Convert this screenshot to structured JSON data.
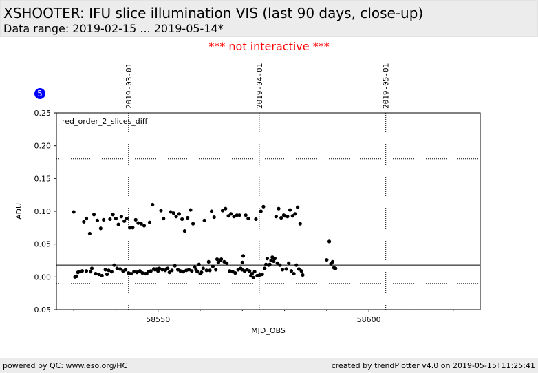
{
  "header": {
    "title": "XSHOOTER: IFU slice illumination VIS (last 90 days, close-up)",
    "subtitle": "Data range: 2019-02-15 ... 2019-05-14*"
  },
  "notice": "*** not interactive ***",
  "badge": "5",
  "footer": {
    "left": "powered by QC: www.eso.org/HC",
    "right": "created by trendPlotter v4.0 on 2019-05-15T11:25:41"
  },
  "chart_data": {
    "type": "scatter",
    "annotation": "red_order_2_slices_diff",
    "xlabel": "MJD_OBS",
    "ylabel": "ADU",
    "xlim": [
      58525.9,
      58626.4
    ],
    "ylim": [
      -0.05,
      0.25
    ],
    "x_ticks": [
      {
        "value": 58550,
        "label": "58550"
      },
      {
        "value": 58600,
        "label": "58600"
      }
    ],
    "x_minor_ticks": [
      58530,
      58540,
      58560,
      58570,
      58580,
      58590,
      58610,
      58620
    ],
    "y_ticks": [
      {
        "value": -0.05,
        "label": "−0.05"
      },
      {
        "value": 0.0,
        "label": "0.00"
      },
      {
        "value": 0.05,
        "label": "0.05"
      },
      {
        "value": 0.1,
        "label": "0.10"
      },
      {
        "value": 0.15,
        "label": "0.15"
      },
      {
        "value": 0.2,
        "label": "0.20"
      },
      {
        "value": 0.25,
        "label": "0.25"
      }
    ],
    "date_markers": [
      {
        "x": 58543.0,
        "label": "2019-03-01"
      },
      {
        "x": 58574.0,
        "label": "2019-04-01"
      },
      {
        "x": 58604.0,
        "label": "2019-05-01"
      }
    ],
    "reference_lines": [
      {
        "y": 0.018,
        "style": "solid"
      },
      {
        "y": 0.18,
        "style": "dotted"
      },
      {
        "y": -0.01,
        "style": "dotted"
      }
    ],
    "point_color": "#000000",
    "points": [
      [
        58530.0,
        0.099
      ],
      [
        58530.3,
        0.0
      ],
      [
        58530.7,
        0.001
      ],
      [
        58531.0,
        0.007
      ],
      [
        58531.5,
        0.008
      ],
      [
        58532.0,
        0.009
      ],
      [
        58532.4,
        0.084
      ],
      [
        58533.0,
        0.089
      ],
      [
        58533.0,
        0.009
      ],
      [
        58533.8,
        0.066
      ],
      [
        58534.0,
        0.008
      ],
      [
        58534.3,
        0.013
      ],
      [
        58534.8,
        0.095
      ],
      [
        58535.2,
        0.005
      ],
      [
        58535.6,
        0.086
      ],
      [
        58536.0,
        0.004
      ],
      [
        58536.4,
        0.074
      ],
      [
        58536.7,
        0.002
      ],
      [
        58537.1,
        0.087
      ],
      [
        58537.5,
        0.011
      ],
      [
        58537.9,
        0.004
      ],
      [
        58538.3,
        0.01
      ],
      [
        58538.6,
        0.088
      ],
      [
        58539.0,
        0.008
      ],
      [
        58539.3,
        0.095
      ],
      [
        58539.6,
        0.018
      ],
      [
        58540.0,
        0.089
      ],
      [
        58540.3,
        0.013
      ],
      [
        58540.6,
        0.08
      ],
      [
        58541.0,
        0.012
      ],
      [
        58541.3,
        0.092
      ],
      [
        58541.7,
        0.009
      ],
      [
        58542.0,
        0.085
      ],
      [
        58542.3,
        0.011
      ],
      [
        58542.6,
        0.089
      ],
      [
        58543.0,
        0.006
      ],
      [
        58543.3,
        0.075
      ],
      [
        58543.6,
        0.005
      ],
      [
        58544.0,
        0.075
      ],
      [
        58544.3,
        0.008
      ],
      [
        58544.7,
        0.087
      ],
      [
        58545.0,
        0.007
      ],
      [
        58545.3,
        0.082
      ],
      [
        58545.7,
        0.009
      ],
      [
        58546.0,
        0.081
      ],
      [
        58546.3,
        0.006
      ],
      [
        58546.7,
        0.078
      ],
      [
        58547.0,
        0.005
      ],
      [
        58547.3,
        0.005
      ],
      [
        58547.7,
        0.008
      ],
      [
        58548.0,
        0.083
      ],
      [
        58548.3,
        0.009
      ],
      [
        58548.7,
        0.11
      ],
      [
        58549.0,
        0.012
      ],
      [
        58549.3,
        0.011
      ],
      [
        58549.7,
        0.012
      ],
      [
        58550.0,
        0.009
      ],
      [
        58550.3,
        0.013
      ],
      [
        58550.7,
        0.101
      ],
      [
        58551.0,
        0.011
      ],
      [
        58551.3,
        0.089
      ],
      [
        58551.7,
        0.01
      ],
      [
        58552.0,
        0.012
      ],
      [
        58552.3,
        0.013
      ],
      [
        58552.7,
        0.007
      ],
      [
        58553.0,
        0.099
      ],
      [
        58553.3,
        0.01
      ],
      [
        58553.7,
        0.097
      ],
      [
        58554.0,
        0.017
      ],
      [
        58554.3,
        0.092
      ],
      [
        58554.7,
        0.011
      ],
      [
        58555.0,
        0.096
      ],
      [
        58555.3,
        0.009
      ],
      [
        58555.7,
        0.088
      ],
      [
        58556.0,
        0.008
      ],
      [
        58556.3,
        0.07
      ],
      [
        58556.7,
        0.01
      ],
      [
        58557.0,
        0.09
      ],
      [
        58557.3,
        0.011
      ],
      [
        58557.7,
        0.102
      ],
      [
        58558.0,
        0.009
      ],
      [
        58558.3,
        0.081
      ],
      [
        58558.7,
        0.015
      ],
      [
        58559.0,
        0.011
      ],
      [
        58559.3,
        0.008
      ],
      [
        58559.7,
        0.019
      ],
      [
        58560.0,
        0.005
      ],
      [
        58560.3,
        0.007
      ],
      [
        58560.7,
        0.013
      ],
      [
        58561.0,
        0.086
      ],
      [
        58561.5,
        0.01
      ],
      [
        58562.0,
        0.023
      ],
      [
        58562.3,
        0.01
      ],
      [
        58562.7,
        0.1
      ],
      [
        58563.0,
        0.016
      ],
      [
        58563.3,
        0.091
      ],
      [
        58563.7,
        0.011
      ],
      [
        58564.0,
        0.027
      ],
      [
        58564.3,
        0.022
      ],
      [
        58564.7,
        0.025
      ],
      [
        58565.0,
        0.027
      ],
      [
        58565.3,
        0.101
      ],
      [
        58565.7,
        0.023
      ],
      [
        58566.0,
        0.104
      ],
      [
        58566.3,
        0.021
      ],
      [
        58566.7,
        0.093
      ],
      [
        58567.0,
        0.009
      ],
      [
        58567.3,
        0.096
      ],
      [
        58567.7,
        0.008
      ],
      [
        58568.0,
        0.092
      ],
      [
        58568.3,
        0.006
      ],
      [
        58568.7,
        0.094
      ],
      [
        58569.0,
        0.011
      ],
      [
        58569.3,
        0.094
      ],
      [
        58569.6,
        0.013
      ],
      [
        58569.9,
        0.011
      ],
      [
        58570.0,
        0.022
      ],
      [
        58570.2,
        0.032
      ],
      [
        58570.5,
        0.009
      ],
      [
        58570.8,
        0.094
      ],
      [
        58571.1,
        0.011
      ],
      [
        58571.4,
        0.089
      ],
      [
        58571.7,
        0.009
      ],
      [
        58572.0,
        0.002
      ],
      [
        58572.3,
        0.005
      ],
      [
        58572.6,
        -0.001
      ],
      [
        58572.9,
        0.008
      ],
      [
        58573.2,
        0.088
      ],
      [
        58573.5,
        0.002
      ],
      [
        58573.8,
        0.002
      ],
      [
        58574.1,
        0.003
      ],
      [
        58574.4,
        0.1
      ],
      [
        58574.7,
        0.004
      ],
      [
        58575.0,
        0.107
      ],
      [
        58575.3,
        0.013
      ],
      [
        58575.6,
        0.019
      ],
      [
        58575.9,
        0.028
      ],
      [
        58576.2,
        0.018
      ],
      [
        58576.5,
        0.019
      ],
      [
        58576.8,
        0.025
      ],
      [
        58577.1,
        0.03
      ],
      [
        58577.4,
        0.024
      ],
      [
        58577.7,
        0.028
      ],
      [
        58578.0,
        0.092
      ],
      [
        58578.3,
        0.021
      ],
      [
        58578.6,
        0.104
      ],
      [
        58578.9,
        0.018
      ],
      [
        58579.2,
        0.09
      ],
      [
        58579.5,
        0.011
      ],
      [
        58579.8,
        0.094
      ],
      [
        58580.1,
        0.093
      ],
      [
        58580.4,
        0.012
      ],
      [
        58580.7,
        0.092
      ],
      [
        58581.0,
        0.021
      ],
      [
        58581.3,
        0.102
      ],
      [
        58581.6,
        0.009
      ],
      [
        58581.9,
        0.093
      ],
      [
        58582.2,
        0.005
      ],
      [
        58582.5,
        0.096
      ],
      [
        58582.8,
        0.018
      ],
      [
        58583.1,
        0.106
      ],
      [
        58583.4,
        0.012
      ],
      [
        58583.7,
        0.081
      ],
      [
        58584.0,
        0.009
      ],
      [
        58584.3,
        0.003
      ],
      [
        58590.0,
        0.026
      ],
      [
        58590.6,
        0.054
      ],
      [
        58591.0,
        0.02
      ],
      [
        58591.4,
        0.023
      ],
      [
        58591.7,
        0.014
      ],
      [
        58592.1,
        0.013
      ]
    ]
  }
}
